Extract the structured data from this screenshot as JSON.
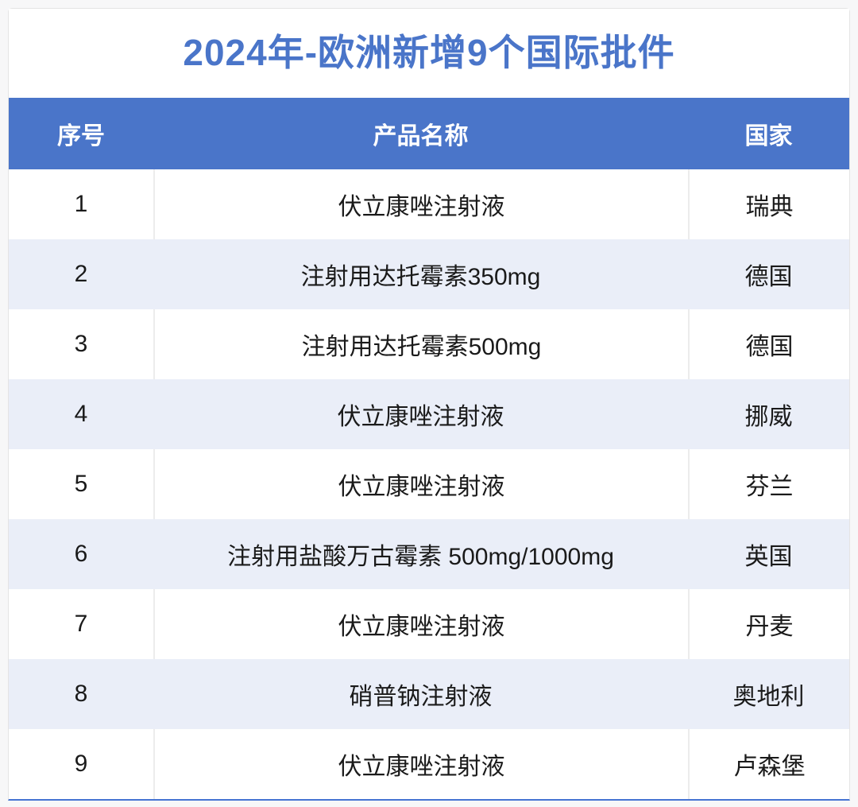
{
  "title": "2024年-欧洲新增9个国际批件",
  "chart_data": {
    "type": "table",
    "title": "2024年-欧洲新增9个国际批件",
    "columns": [
      "序号",
      "产品名称",
      "国家"
    ],
    "rows": [
      [
        "1",
        "伏立康唑注射液",
        "瑞典"
      ],
      [
        "2",
        "注射用达托霉素350mg",
        "德国"
      ],
      [
        "3",
        "注射用达托霉素500mg",
        "德国"
      ],
      [
        "4",
        "伏立康唑注射液",
        "挪威"
      ],
      [
        "5",
        "伏立康唑注射液",
        "芬兰"
      ],
      [
        "6",
        "注射用盐酸万古霉素 500mg/1000mg",
        "英国"
      ],
      [
        "7",
        "伏立康唑注射液",
        "丹麦"
      ],
      [
        "8",
        "硝普钠注射液",
        "奥地利"
      ],
      [
        "9",
        "伏立康唑注射液",
        "卢森堡"
      ]
    ],
    "row_count": 9,
    "legend_position": "none",
    "grid": "zebra-striped rows, dividers on white rows only"
  },
  "colors": {
    "title_text": "#4a75c9",
    "header_bg": "#4a75c9",
    "header_text": "#ffffff",
    "row_bg": "#ffffff",
    "row_alt_bg": "#eaeef8",
    "cell_text": "#1a1a1a",
    "divider": "#ececec",
    "bottom_border": "#4674d2"
  }
}
